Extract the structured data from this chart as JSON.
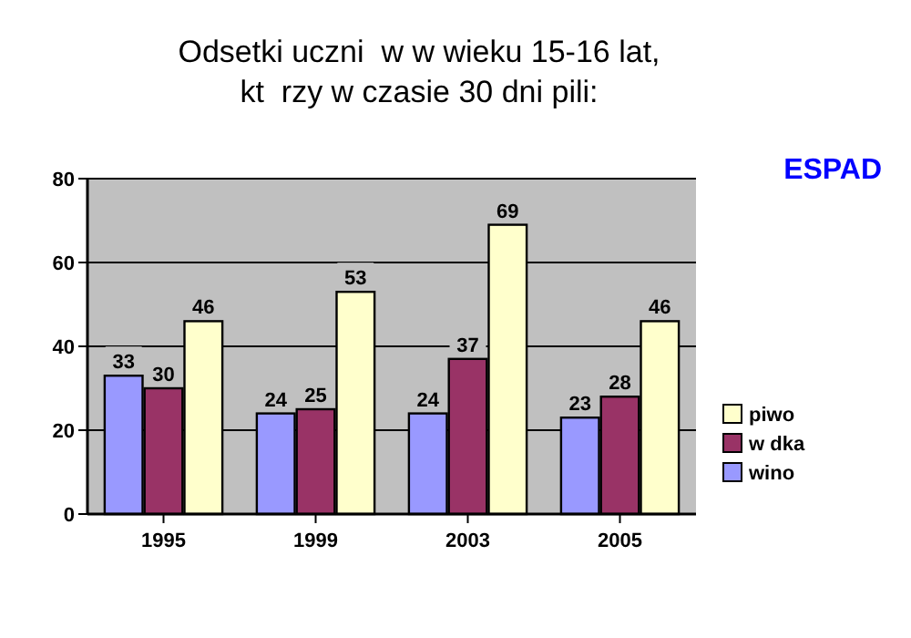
{
  "chart_data": {
    "type": "bar",
    "title": "Odsetki uczni  w w wieku 15-16 lat,\nkt  rzy w czasie 30 dni pili:",
    "annotations": [
      "ESPAD"
    ],
    "categories": [
      "1995",
      "1999",
      "2003",
      "2005"
    ],
    "series": [
      {
        "name": "wino",
        "color": "#9999ff",
        "values": [
          33,
          24,
          24,
          23
        ]
      },
      {
        "name": "w dka",
        "color": "#993366",
        "values": [
          30,
          25,
          37,
          28
        ]
      },
      {
        "name": "piwo",
        "color": "#ffffcc",
        "values": [
          46,
          53,
          69,
          46
        ]
      }
    ],
    "ylim": [
      0,
      80
    ],
    "yticks": [
      0,
      20,
      40,
      60,
      80
    ],
    "grid": "y",
    "legend": "right",
    "data_labels": true
  }
}
